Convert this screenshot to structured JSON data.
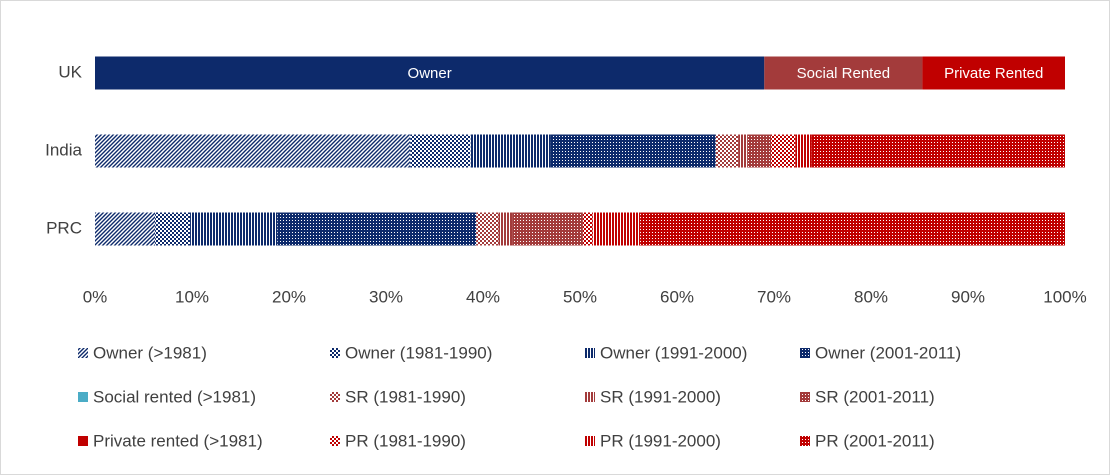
{
  "chart_data": {
    "type": "stacked_bar_horizontal",
    "categories": [
      "UK",
      "India",
      "PRC"
    ],
    "xlim": [
      0,
      100
    ],
    "xticks": [
      {
        "value": 0,
        "label": "0%"
      },
      {
        "value": 10,
        "label": "10%"
      },
      {
        "value": 20,
        "label": "20%"
      },
      {
        "value": 30,
        "label": "30%"
      },
      {
        "value": 40,
        "label": "40%"
      },
      {
        "value": 50,
        "label": "50%"
      },
      {
        "value": 60,
        "label": "60%"
      },
      {
        "value": 70,
        "label": "70%"
      },
      {
        "value": 80,
        "label": "80%"
      },
      {
        "value": 90,
        "label": "90%"
      },
      {
        "value": 100,
        "label": "100%"
      }
    ],
    "grid": false,
    "legend": "bottom",
    "series": [
      {
        "name": "Owner",
        "color": "#0d2a6b",
        "pattern": "solid",
        "show_in_legend": false,
        "label_inside": true,
        "values": [
          69.0,
          null,
          null
        ]
      },
      {
        "name": "Social Rented",
        "color": "#a33b3b",
        "pattern": "solid",
        "show_in_legend": false,
        "label_inside": true,
        "values": [
          16.3,
          null,
          null
        ]
      },
      {
        "name": "Private Rented",
        "color": "#c00000",
        "pattern": "solid",
        "show_in_legend": false,
        "label_inside": true,
        "values": [
          14.7,
          null,
          null
        ]
      },
      {
        "name": "Owner (>1981)",
        "color": "#0d2a6b",
        "pattern": "diagonal",
        "values": [
          null,
          32.5,
          6.2
        ]
      },
      {
        "name": "Owner (1981-1990)",
        "color": "#0d2a6b",
        "pattern": "checker",
        "values": [
          null,
          6.2,
          3.6
        ]
      },
      {
        "name": "Owner (1991-2000)",
        "color": "#0d2a6b",
        "pattern": "vertical",
        "values": [
          null,
          8.3,
          9.0
        ]
      },
      {
        "name": "Owner (2001-2011)",
        "color": "#0d2a6b",
        "pattern": "dots",
        "values": [
          null,
          17.0,
          20.5
        ]
      },
      {
        "name": "Social rented (>1981)",
        "color": "#4bacc6",
        "pattern": "solid",
        "values": [
          null,
          0,
          0
        ]
      },
      {
        "name": "SR (1981-1990)",
        "color": "#a33b3b",
        "pattern": "checker",
        "values": [
          null,
          2.3,
          2.3
        ]
      },
      {
        "name": "SR (1991-2000)",
        "color": "#a33b3b",
        "pattern": "vertical",
        "values": [
          null,
          1.0,
          1.4
        ]
      },
      {
        "name": "SR (2001-2011)",
        "color": "#a33b3b",
        "pattern": "dots",
        "values": [
          null,
          2.4,
          7.3
        ]
      },
      {
        "name": "Private rented (>1981)",
        "color": "#c00000",
        "pattern": "solid",
        "values": [
          null,
          0,
          0
        ]
      },
      {
        "name": "PR (1981-1990)",
        "color": "#c00000",
        "pattern": "checker",
        "values": [
          null,
          2.5,
          1.0
        ]
      },
      {
        "name": "PR (1991-2000)",
        "color": "#c00000",
        "pattern": "vertical",
        "values": [
          null,
          1.7,
          4.9
        ]
      },
      {
        "name": "PR (2001-2011)",
        "color": "#c00000",
        "pattern": "dots",
        "values": [
          null,
          26.1,
          43.8
        ]
      }
    ]
  }
}
